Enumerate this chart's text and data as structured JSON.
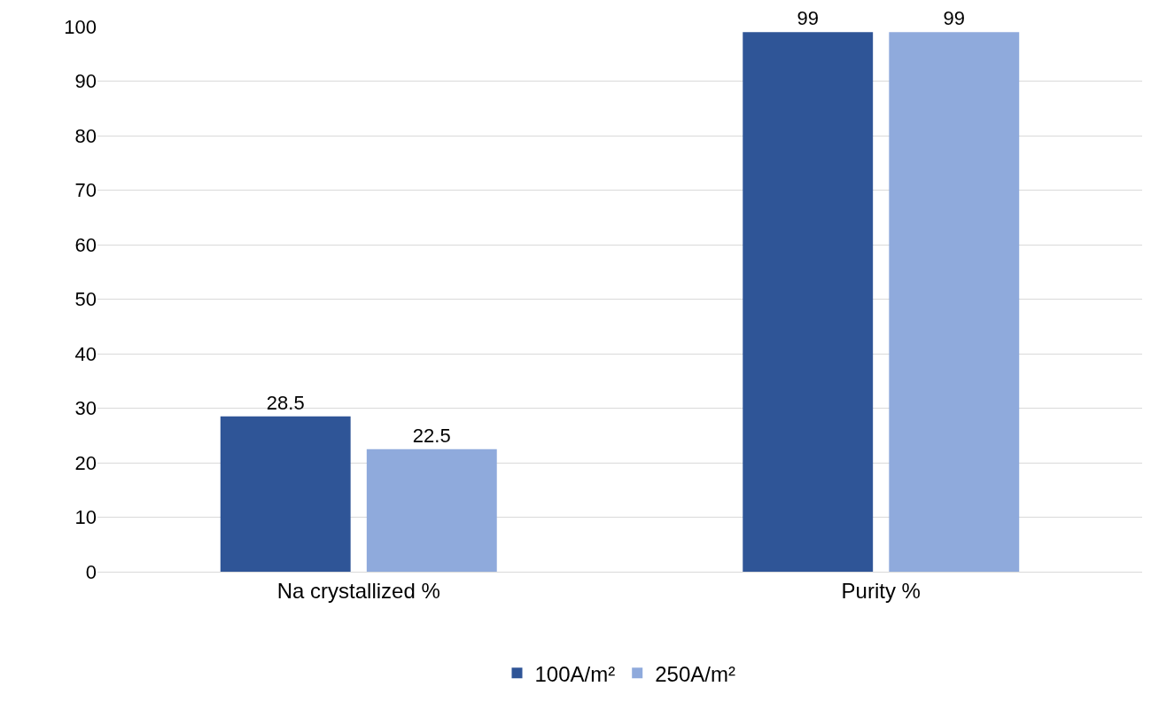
{
  "chart_data": {
    "type": "bar",
    "categories": [
      "Na crystallized %",
      "Purity %"
    ],
    "series": [
      {
        "name": "100A/m²",
        "color": "#2f5597",
        "values": [
          28.5,
          99
        ]
      },
      {
        "name": "250A/m²",
        "color": "#8faadc",
        "values": [
          22.5,
          99
        ]
      }
    ],
    "ylim": [
      0,
      100
    ],
    "yticks": [
      0,
      10,
      20,
      30,
      40,
      50,
      60,
      70,
      80,
      90,
      100
    ],
    "grid": "y",
    "legend": "bottom",
    "data_labels": true
  }
}
